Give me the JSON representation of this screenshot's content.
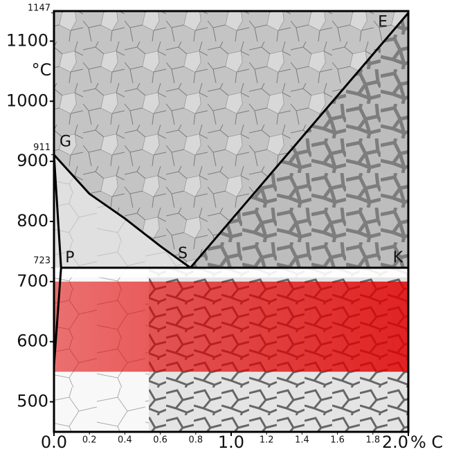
{
  "chart_data": {
    "type": "line",
    "x_unit": "% C",
    "y_unit": "°C",
    "xlim": [
      0,
      2.0
    ],
    "ylim": [
      450,
      1150
    ],
    "xticks": [
      {
        "value": 0,
        "label": "0.0"
      },
      {
        "value": 1,
        "label": "1.0"
      },
      {
        "value": 2,
        "label": "2.0"
      }
    ],
    "xticks_minor": [
      0.2,
      0.4,
      0.6,
      0.8,
      1.2,
      1.4,
      1.6,
      1.8
    ],
    "yticks": [
      500,
      600,
      700,
      800,
      900,
      1000,
      1100
    ],
    "yticks_special": [
      723,
      911,
      1147
    ],
    "series": [
      {
        "color": "#000000",
        "x": [
          0,
          0.2,
          0.4,
          0.6,
          0.77
        ],
        "values": [
          911,
          846,
          805,
          759,
          723
        ]
      },
      {
        "color": "#000000",
        "x": [
          0.77,
          2.0
        ],
        "values": [
          723,
          1147
        ]
      },
      {
        "color": "#000000",
        "x": [
          0.04,
          2.0
        ],
        "values": [
          723,
          723
        ]
      },
      {
        "color": "#000000",
        "x": [
          0,
          0.04
        ],
        "values": [
          911,
          723
        ]
      },
      {
        "color": "#000000",
        "x": [
          0.04,
          0
        ],
        "values": [
          723,
          560
        ]
      }
    ],
    "points": [
      {
        "label": "G",
        "x": 0,
        "y": 911
      },
      {
        "label": "S",
        "x": 0.77,
        "y": 723
      },
      {
        "label": "E",
        "x": 2.0,
        "y": 1147
      },
      {
        "label": "P",
        "x": 0.04,
        "y": 723
      },
      {
        "label": "K",
        "x": 2.0,
        "y": 723
      }
    ],
    "bands": [
      {
        "from": 550,
        "to": 700,
        "color": "#e00000"
      }
    ]
  }
}
